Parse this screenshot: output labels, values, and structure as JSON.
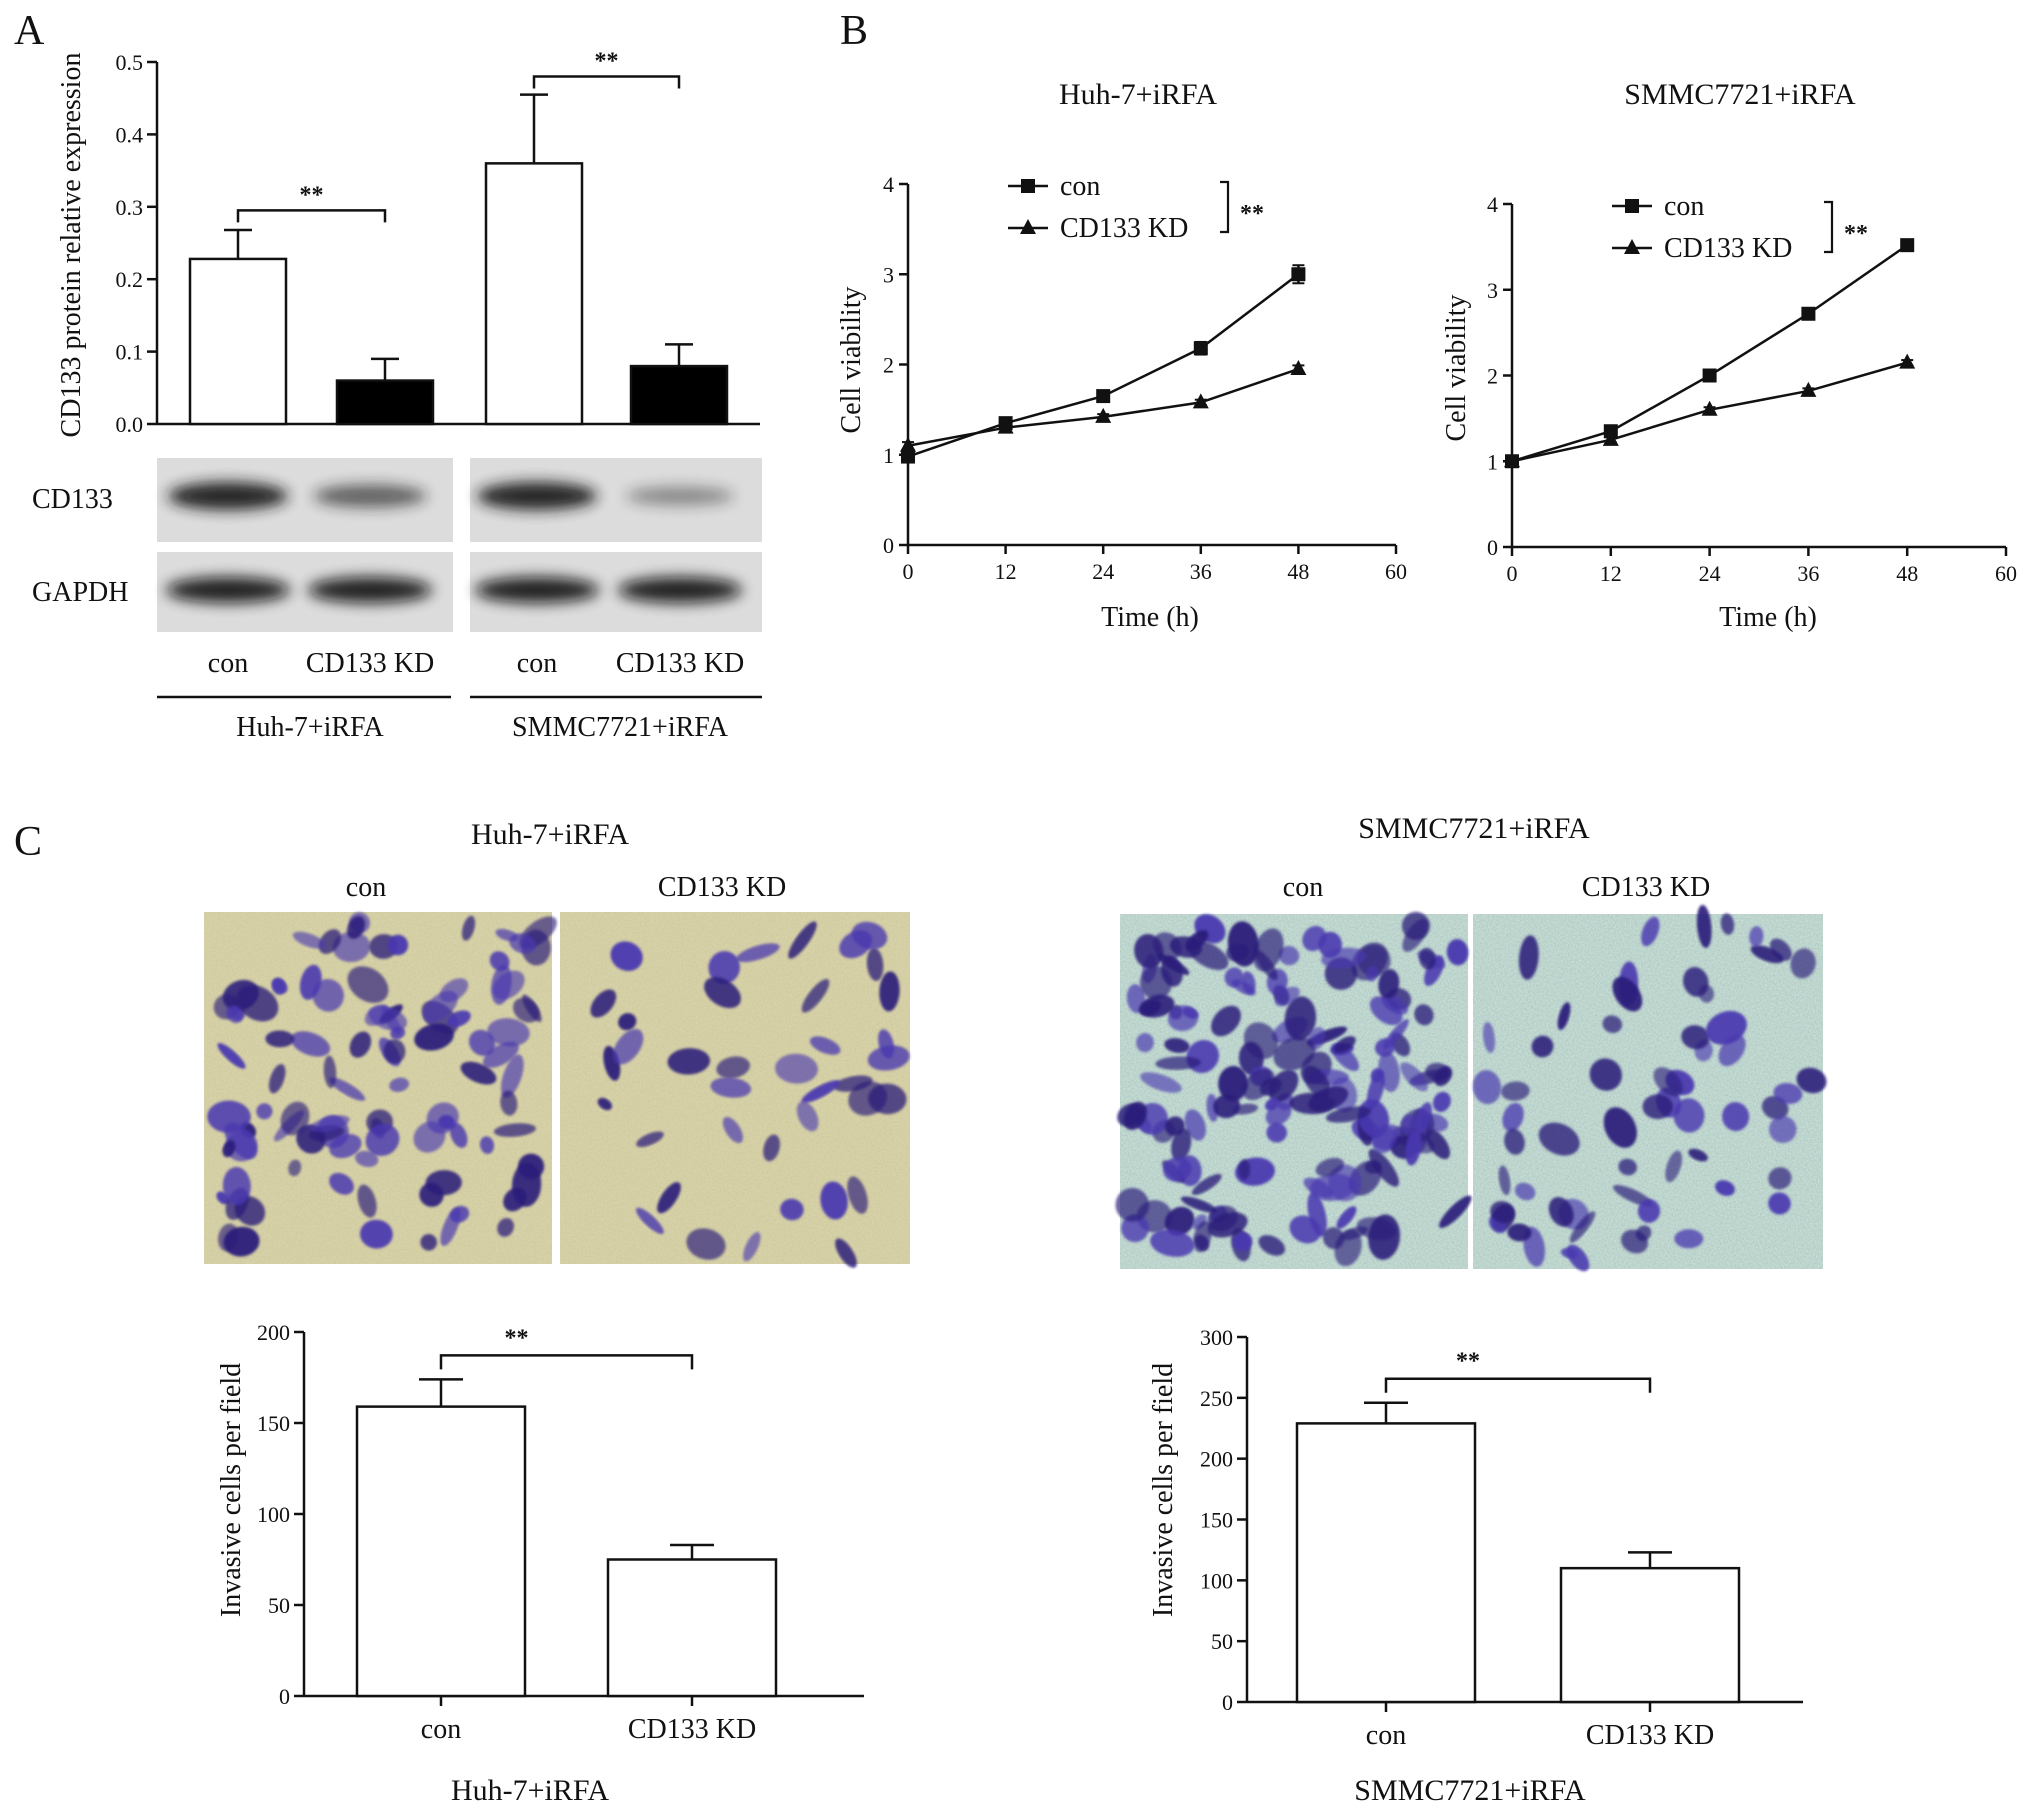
{
  "panels": {
    "A": {
      "letter": "A",
      "chart_data": {
        "type": "bar",
        "ylabel": "CD133 protein relative expression",
        "ylim": [
          0,
          0.5
        ],
        "yticks": [
          "0.0",
          "0.1",
          "0.2",
          "0.3",
          "0.4",
          "0.5"
        ],
        "bars": [
          {
            "group": "Huh-7+iRFA",
            "label": "con",
            "value": 0.228,
            "err": 0.04,
            "fill": "#ffffff"
          },
          {
            "group": "Huh-7+iRFA",
            "label": "CD133 KD",
            "value": 0.06,
            "err": 0.03,
            "fill": "#000000"
          },
          {
            "group": "SMMC7721+iRFA",
            "label": "con",
            "value": 0.36,
            "err": 0.095,
            "fill": "#ffffff"
          },
          {
            "group": "SMMC7721+iRFA",
            "label": "CD133 KD",
            "value": 0.08,
            "err": 0.03,
            "fill": "#000000"
          }
        ],
        "significance": [
          "**",
          "**"
        ]
      },
      "blot_rows": [
        "CD133",
        "GAPDH"
      ],
      "lanes": [
        "con",
        "CD133 KD",
        "con",
        "CD133 KD"
      ],
      "groups": [
        "Huh-7+iRFA",
        "SMMC7721+iRFA"
      ],
      "blot_levels": {
        "CD133": [
          1.0,
          0.55,
          1.0,
          0.25
        ],
        "GAPDH": [
          1.0,
          1.0,
          1.0,
          1.0
        ]
      }
    },
    "B": {
      "letter": "B",
      "charts": [
        {
          "type": "line",
          "title": "Huh-7+iRFA",
          "xlabel": "Time (h)",
          "ylabel": "Cell viability",
          "xlim": [
            0,
            60
          ],
          "ylim": [
            0,
            4
          ],
          "xticks": [
            "0",
            "12",
            "24",
            "36",
            "48",
            "60"
          ],
          "yticks": [
            "0",
            "1",
            "2",
            "3",
            "4"
          ],
          "series": [
            {
              "name": "con",
              "marker": "square",
              "x": [
                0,
                12,
                24,
                36,
                48
              ],
              "y": [
                0.98,
                1.35,
                1.65,
                2.18,
                3.0
              ],
              "err": [
                0.05,
                0.04,
                0.04,
                0.07,
                0.1
              ]
            },
            {
              "name": "CD133 KD",
              "marker": "triangle",
              "x": [
                0,
                12,
                24,
                36,
                48
              ],
              "y": [
                1.1,
                1.3,
                1.42,
                1.58,
                1.95
              ],
              "err": [
                0.04,
                0.03,
                0.03,
                0.03,
                0.04
              ]
            }
          ],
          "significance": "**"
        },
        {
          "type": "line",
          "title": "SMMC7721+iRFA",
          "xlabel": "Time (h)",
          "ylabel": "Cell viability",
          "xlim": [
            0,
            60
          ],
          "ylim": [
            0,
            4
          ],
          "xticks": [
            "0",
            "12",
            "24",
            "36",
            "48",
            "60"
          ],
          "yticks": [
            "0",
            "1",
            "2",
            "3",
            "4"
          ],
          "series": [
            {
              "name": "con",
              "marker": "square",
              "x": [
                0,
                12,
                24,
                36,
                48
              ],
              "y": [
                1.0,
                1.35,
                2.0,
                2.72,
                3.52
              ],
              "err": [
                0.02,
                0.03,
                0.03,
                0.03,
                0.04
              ]
            },
            {
              "name": "CD133 KD",
              "marker": "triangle",
              "x": [
                0,
                12,
                24,
                36,
                48
              ],
              "y": [
                1.0,
                1.25,
                1.6,
                1.82,
                2.15
              ],
              "err": [
                0.02,
                0.03,
                0.03,
                0.03,
                0.03
              ]
            }
          ],
          "significance": "**"
        }
      ]
    },
    "C": {
      "letter": "C",
      "images": [
        {
          "title": "Huh-7+iRFA",
          "labels": [
            "con",
            "CD133 KD"
          ]
        },
        {
          "title": "SMMC7721+iRFA",
          "labels": [
            "con",
            "CD133 KD"
          ]
        }
      ],
      "charts": [
        {
          "type": "bar",
          "xlabel": "Huh-7+iRFA",
          "ylabel": "Invasive cells per field",
          "ylim": [
            0,
            200
          ],
          "yticks": [
            "0",
            "50",
            "100",
            "150",
            "200"
          ],
          "categories": [
            "con",
            "CD133 KD"
          ],
          "values": [
            159,
            75
          ],
          "err": [
            15,
            8
          ],
          "significance": "**"
        },
        {
          "type": "bar",
          "xlabel": "SMMC7721+iRFA",
          "ylabel": "Invasive cells per field",
          "ylim": [
            0,
            300
          ],
          "yticks": [
            "0",
            "50",
            "100",
            "150",
            "200",
            "250",
            "300"
          ],
          "categories": [
            "con",
            "CD133 KD"
          ],
          "values": [
            229,
            110
          ],
          "err": [
            17,
            13
          ],
          "significance": "**"
        }
      ]
    }
  },
  "colors": {
    "axis": "#111111",
    "stain_dark": "#2a1d7a",
    "stain_mid": "#4a38b0",
    "huh_background": "#d8d3a6",
    "smmc_background": "#c7dcd4"
  }
}
